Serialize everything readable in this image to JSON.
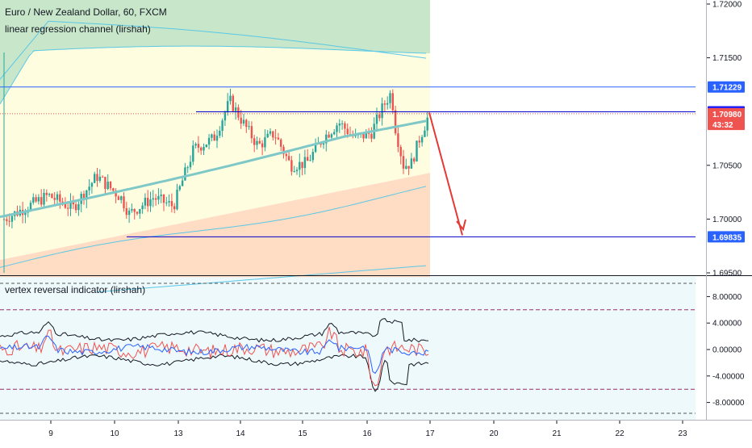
{
  "header": {
    "title": "Euro / New Zealand Dollar, 60, FXCM",
    "indicator1": "linear regression channel (lirshah)",
    "indicator2": "vertex reversal indicator (lirshah)"
  },
  "colors": {
    "upper_band": "#c8e6c9",
    "middle_band": "#fffde0",
    "lower_band": "#ffdcc4",
    "band_line": "#5ac8e6",
    "regression_line": "#7ec8c8",
    "candle_up": "#26a69a",
    "candle_down": "#ef5350",
    "level_line": "#2962ff",
    "price_line": "#ef5350",
    "arrow": "#e53935",
    "osc_bg": "#eef9fb",
    "osc_level": "#9c2a6a",
    "osc_red": "#ef5350",
    "osc_blue": "#2962ff",
    "osc_black": "#131722"
  },
  "price_axis": {
    "ticks": [
      "1.72000",
      "1.71500",
      "1.70500",
      "1.70000",
      "1.69500"
    ],
    "labels": [
      {
        "text": "1.71229",
        "value": 1.71229,
        "color": "#2962ff"
      },
      {
        "text": "1.70998",
        "value": 1.70998,
        "color": "#1a1aff"
      },
      {
        "text": "1.70980",
        "value": 1.7098,
        "color": "#ef5350"
      },
      {
        "text": "43:32",
        "value": 1.7088,
        "color": "#ef5350"
      },
      {
        "text": "1.69835",
        "value": 1.69835,
        "color": "#2962ff"
      }
    ]
  },
  "osc_axis": {
    "ticks": [
      "8.00000",
      "4.00000",
      "0.00000",
      "-4.00000",
      "-8.00000"
    ]
  },
  "time_axis": {
    "ticks": [
      "9",
      "10",
      "13",
      "14",
      "15",
      "16",
      "17",
      "20",
      "21",
      "22",
      "23"
    ]
  },
  "chart_data": {
    "type": "candlestick",
    "symbol": "EURNZD",
    "timeframe": "60",
    "source": "FXCM",
    "price_range": [
      1.6946,
      1.7215
    ],
    "horizontal_levels": [
      1.71229,
      1.70998,
      1.69835
    ],
    "current_price": 1.7098,
    "oscillator_range": [
      -10,
      10
    ],
    "oscillator_levels": [
      6,
      -6
    ]
  }
}
